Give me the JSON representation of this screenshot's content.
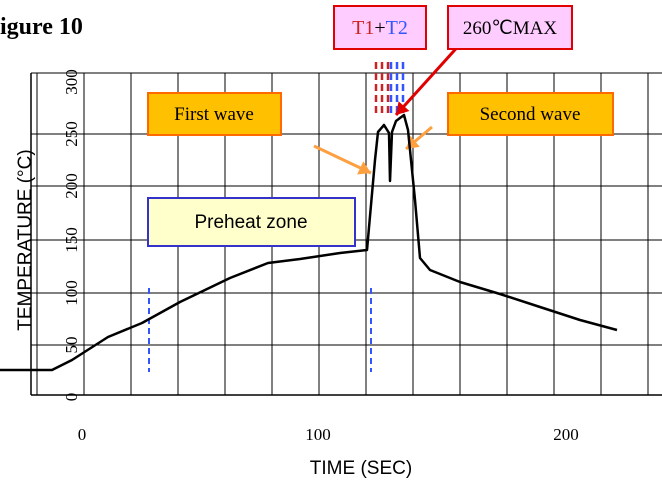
{
  "figure_label": "igure 10",
  "chart_data": {
    "type": "line",
    "title": "",
    "xlabel": "TIME (SEC)",
    "ylabel": "TEMPERATURE (°C)",
    "xlim": [
      0,
      250
    ],
    "ylim": [
      0,
      300
    ],
    "x_ticks": [
      0,
      100,
      200
    ],
    "y_ticks": [
      50,
      100,
      150,
      200,
      250,
      300
    ],
    "grid": true,
    "colors": {
      "curve": "#000000",
      "grid": "#000000",
      "orange_box_fill": "#ffc000",
      "orange_box_border": "#ff6a00",
      "preheat_box_fill": "#ffffcc",
      "preheat_box_border": "#3333cc",
      "label_box_fill": "#ffccff",
      "label_box_border": "#e00000",
      "arrow_orange": "#ffa040",
      "arrow_red": "#e00000",
      "dash_blue": "#3355ff",
      "dash_red": "#cc2222"
    },
    "series": [
      {
        "x": [
          -33,
          -17,
          -15,
          -12,
          -5,
          0,
          5,
          10,
          15,
          20,
          25,
          30,
          35,
          40,
          45,
          50,
          55,
          60,
          65,
          70,
          75,
          80,
          85,
          90,
          95,
          100,
          105,
          110,
          115,
          120,
          121,
          122,
          123,
          124,
          125,
          126,
          127,
          128,
          129,
          130,
          131,
          132,
          133,
          134,
          135,
          136,
          137,
          138,
          139,
          140,
          141,
          142,
          143,
          145,
          150,
          155,
          160,
          165,
          170,
          175,
          180,
          185,
          190,
          195,
          200,
          205,
          210,
          215,
          220,
          225
        ],
        "y": [
          28,
          28,
          30,
          34,
          42,
          50,
          58,
          65,
          72,
          80,
          88,
          96,
          104,
          112,
          120,
          126,
          132,
          138,
          144,
          150,
          156,
          162,
          168,
          172,
          175,
          176,
          178,
          180,
          181,
          182,
          189,
          201,
          221,
          241,
          252,
          252,
          252,
          252,
          205,
          255,
          260,
          260,
          257,
          241,
          221,
          201,
          181,
          161,
          141,
          126,
          118,
          113,
          110,
          108,
          105,
          100,
          96,
          93,
          91,
          89,
          87,
          85,
          83,
          81,
          79,
          77,
          75,
          73,
          71,
          69
        ]
      }
    ],
    "annotations": {
      "first_wave": "First wave",
      "second_wave": "Second wave",
      "preheat_zone": "Preheat zone",
      "t1": "T1",
      "plus": "+",
      "t2": "T2",
      "max_label": "260℃MAX"
    }
  }
}
